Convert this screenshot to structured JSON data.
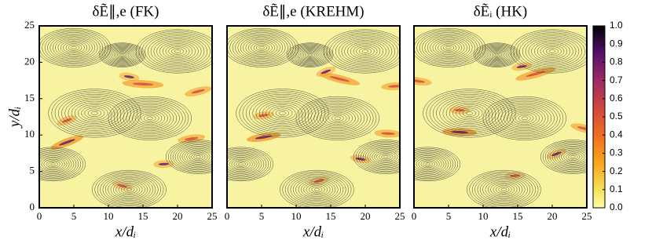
{
  "chart_data": [
    {
      "type": "heatmap",
      "title": "δẼ∥,e (FK)",
      "xlabel": "x/dᵢ",
      "ylabel": "y/dᵢ",
      "xlim": [
        0,
        25
      ],
      "ylim": [
        0,
        25
      ],
      "xticks": [
        0,
        5,
        10,
        15,
        20,
        25
      ],
      "yticks": [
        0,
        5,
        10,
        15,
        20,
        25
      ]
    },
    {
      "type": "heatmap",
      "title": "δẼ∥,e (KREHM)",
      "xlabel": "x/dᵢ",
      "xlim": [
        0,
        25
      ],
      "ylim": [
        0,
        25
      ],
      "xticks": [
        0,
        5,
        10,
        15,
        20,
        25
      ]
    },
    {
      "type": "heatmap",
      "title": "δẼᵢ (HK)",
      "xlabel": "x/dᵢ",
      "xlim": [
        0,
        25
      ],
      "ylim": [
        0,
        25
      ],
      "xticks": [
        0,
        5,
        10,
        15,
        20,
        25
      ],
      "colorbar": {
        "lim": [
          0,
          1
        ],
        "ticks": [
          {
            "value": 0,
            "label": "0.0"
          },
          0.1,
          0.2,
          0.3,
          0.4,
          0.5,
          0.6,
          0.7,
          0.8,
          0.9,
          {
            "value": 1,
            "label": "1.0"
          }
        ]
      }
    }
  ]
}
